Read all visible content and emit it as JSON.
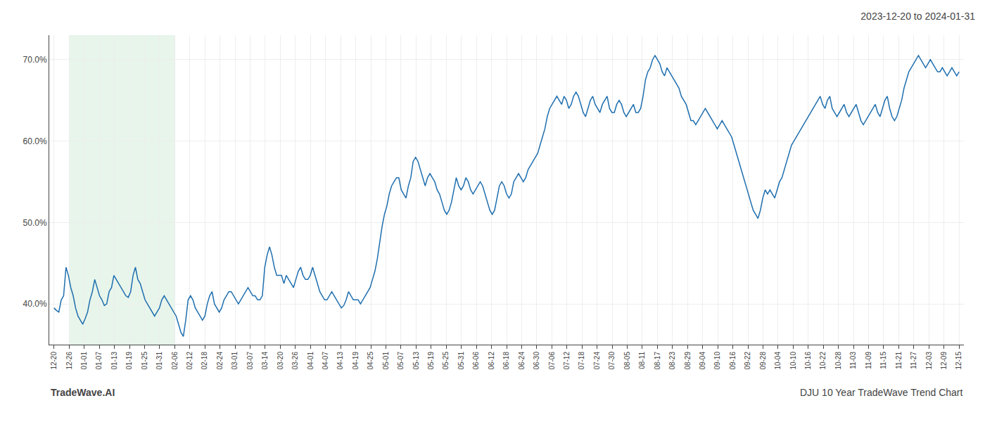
{
  "chart_data": {
    "type": "line",
    "title": "2023-12-20 to 2024-01-31",
    "annotations": [
      "TradeWave.AI",
      "DJU 10 Year TradeWave Trend Chart"
    ],
    "color": "#1f6faf",
    "grid": true,
    "span": {
      "x": [
        6.3,
        50.4
      ],
      "color": "#d4edda"
    },
    "xlim": [
      -2,
      380
    ],
    "xticks": [
      {
        "value": 0,
        "label": "12-20"
      },
      {
        "value": 6.3,
        "label": "12-26"
      },
      {
        "value": 12.6,
        "label": "01-01"
      },
      {
        "value": 18.9,
        "label": "01-07"
      },
      {
        "value": 25.2,
        "label": "01-13"
      },
      {
        "value": 31.5,
        "label": "01-19"
      },
      {
        "value": 37.8,
        "label": "01-25"
      },
      {
        "value": 44.1,
        "label": "01-31"
      },
      {
        "value": 50.4,
        "label": "02-06"
      },
      {
        "value": 56.7,
        "label": "02-12"
      },
      {
        "value": 63,
        "label": "02-18"
      },
      {
        "value": 69.3,
        "label": "02-24"
      },
      {
        "value": 75.6,
        "label": "03-01"
      },
      {
        "value": 81.9,
        "label": "03-07"
      },
      {
        "value": 88.2,
        "label": "03-14"
      },
      {
        "value": 94.5,
        "label": "03-20"
      },
      {
        "value": 100.8,
        "label": "03-26"
      },
      {
        "value": 107.1,
        "label": "04-01"
      },
      {
        "value": 113.4,
        "label": "04-07"
      },
      {
        "value": 119.7,
        "label": "04-13"
      },
      {
        "value": 126,
        "label": "04-19"
      },
      {
        "value": 132.3,
        "label": "04-25"
      },
      {
        "value": 138.6,
        "label": "05-01"
      },
      {
        "value": 144.9,
        "label": "05-07"
      },
      {
        "value": 151.2,
        "label": "05-13"
      },
      {
        "value": 157.5,
        "label": "05-19"
      },
      {
        "value": 163.8,
        "label": "05-25"
      },
      {
        "value": 170.1,
        "label": "05-31"
      },
      {
        "value": 176.4,
        "label": "06-06"
      },
      {
        "value": 182.7,
        "label": "06-12"
      },
      {
        "value": 189,
        "label": "06-18"
      },
      {
        "value": 195.3,
        "label": "06-24"
      },
      {
        "value": 201.6,
        "label": "06-30"
      },
      {
        "value": 207.9,
        "label": "07-06"
      },
      {
        "value": 214.2,
        "label": "07-12"
      },
      {
        "value": 220.5,
        "label": "07-18"
      },
      {
        "value": 226.8,
        "label": "07-24"
      },
      {
        "value": 233.1,
        "label": "07-30"
      },
      {
        "value": 239.4,
        "label": "08-05"
      },
      {
        "value": 245.7,
        "label": "08-11"
      },
      {
        "value": 252,
        "label": "08-17"
      },
      {
        "value": 258.3,
        "label": "08-23"
      },
      {
        "value": 264.6,
        "label": "08-29"
      },
      {
        "value": 270.9,
        "label": "09-04"
      },
      {
        "value": 277.2,
        "label": "09-10"
      },
      {
        "value": 283.5,
        "label": "09-16"
      },
      {
        "value": 289.8,
        "label": "09-22"
      },
      {
        "value": 296.1,
        "label": "09-28"
      },
      {
        "value": 302.4,
        "label": "10-04"
      },
      {
        "value": 308.7,
        "label": "10-10"
      },
      {
        "value": 315,
        "label": "10-16"
      },
      {
        "value": 321.3,
        "label": "10-22"
      },
      {
        "value": 327.6,
        "label": "10-28"
      },
      {
        "value": 333.9,
        "label": "11-03"
      },
      {
        "value": 340.2,
        "label": "11-09"
      },
      {
        "value": 346.5,
        "label": "11-15"
      },
      {
        "value": 352.8,
        "label": "11-21"
      },
      {
        "value": 359.1,
        "label": "11-27"
      },
      {
        "value": 365.4,
        "label": "12-03"
      },
      {
        "value": 371.7,
        "label": "12-09"
      },
      {
        "value": 378,
        "label": "12-15"
      }
    ],
    "ylim": [
      35,
      73
    ],
    "yticks": [
      {
        "value": 40,
        "label": "40.0%"
      },
      {
        "value": 50,
        "label": "50.0%"
      },
      {
        "value": 60,
        "label": "60.0%"
      },
      {
        "value": 70,
        "label": "70.0%"
      }
    ],
    "values": [
      39.5,
      39.2,
      39.0,
      40.5,
      41.0,
      44.5,
      43.5,
      42.0,
      41.0,
      39.5,
      38.5,
      38.0,
      37.5,
      38.2,
      39.0,
      40.5,
      41.5,
      43.0,
      42.0,
      41.0,
      40.5,
      39.8,
      40.0,
      41.5,
      42.0,
      43.5,
      43.0,
      42.5,
      42.0,
      41.5,
      41.0,
      40.8,
      41.5,
      43.5,
      44.5,
      43.0,
      42.5,
      41.5,
      40.5,
      40.0,
      39.5,
      39.0,
      38.5,
      39.0,
      39.5,
      40.5,
      41.0,
      40.5,
      40.0,
      39.5,
      39.0,
      38.5,
      37.5,
      36.5,
      36.0,
      38.0,
      40.5,
      41.0,
      40.5,
      39.5,
      39.0,
      38.5,
      38.0,
      38.5,
      40.0,
      41.0,
      41.5,
      40.0,
      39.5,
      39.0,
      39.5,
      40.5,
      41.0,
      41.5,
      41.5,
      41.0,
      40.5,
      40.0,
      40.5,
      41.0,
      41.5,
      42.0,
      41.5,
      41.0,
      41.0,
      40.5,
      40.5,
      41.0,
      44.5,
      46.0,
      47.0,
      46.0,
      44.5,
      43.5,
      43.5,
      43.5,
      42.5,
      43.5,
      43.0,
      42.5,
      42.0,
      43.0,
      44.0,
      44.5,
      43.5,
      43.0,
      43.0,
      43.5,
      44.5,
      43.5,
      42.5,
      41.5,
      41.0,
      40.5,
      40.5,
      41.0,
      41.5,
      41.0,
      40.5,
      40.0,
      39.5,
      39.8,
      40.5,
      41.5,
      41.0,
      40.5,
      40.5,
      40.5,
      40.0,
      40.5,
      41.0,
      41.5,
      42.0,
      43.0,
      44.0,
      45.5,
      47.5,
      49.5,
      51.0,
      52.0,
      53.5,
      54.5,
      55.0,
      55.5,
      55.5,
      54.0,
      53.5,
      53.0,
      54.5,
      55.5,
      57.5,
      58.0,
      57.5,
      56.5,
      55.5,
      54.5,
      55.5,
      56.0,
      55.5,
      55.0,
      54.0,
      53.5,
      52.5,
      51.5,
      51.0,
      51.5,
      52.5,
      54.0,
      55.5,
      54.5,
      54.0,
      54.5,
      55.5,
      55.0,
      54.0,
      53.5,
      54.0,
      54.5,
      55.0,
      54.5,
      53.5,
      52.5,
      51.5,
      51.0,
      51.5,
      53.0,
      54.5,
      55.0,
      54.5,
      53.5,
      53.0,
      53.5,
      55.0,
      55.5,
      56.0,
      55.5,
      55.0,
      55.5,
      56.5,
      57.0,
      57.5,
      58.0,
      58.5,
      59.5,
      60.5,
      61.5,
      63.0,
      64.0,
      64.5,
      65.0,
      65.5,
      65.0,
      64.5,
      65.5,
      65.0,
      64.0,
      64.5,
      65.5,
      66.0,
      65.5,
      64.5,
      63.5,
      63.0,
      64.0,
      65.0,
      65.5,
      64.5,
      64.0,
      63.5,
      64.5,
      65.0,
      65.5,
      64.0,
      63.5,
      63.5,
      64.5,
      65.0,
      64.5,
      63.5,
      63.0,
      63.5,
      64.0,
      64.5,
      63.5,
      63.5,
      64.0,
      65.5,
      67.5,
      68.5,
      69.0,
      70.0,
      70.5,
      70.0,
      69.5,
      68.5,
      68.0,
      69.0,
      68.5,
      68.0,
      67.5,
      67.0,
      66.5,
      65.5,
      65.0,
      64.5,
      63.5,
      62.5,
      62.5,
      62.0,
      62.5,
      63.0,
      63.5,
      64.0,
      63.5,
      63.0,
      62.5,
      62.0,
      61.5,
      62.0,
      62.5,
      62.0,
      61.5,
      61.0,
      60.5,
      59.5,
      58.5,
      57.5,
      56.5,
      55.5,
      54.5,
      53.5,
      52.5,
      51.5,
      51.0,
      50.5,
      51.5,
      53.0,
      54.0,
      53.5,
      54.0,
      53.5,
      53.0,
      54.0,
      55.0,
      55.5,
      56.5,
      57.5,
      58.5,
      59.5,
      60.0,
      60.5,
      61.0,
      61.5,
      62.0,
      62.5,
      63.0,
      63.5,
      64.0,
      64.5,
      65.0,
      65.5,
      64.5,
      64.0,
      65.0,
      65.5,
      64.0,
      63.5,
      63.0,
      63.5,
      64.0,
      64.5,
      63.5,
      63.0,
      63.5,
      64.0,
      64.5,
      63.5,
      62.5,
      62.0,
      62.5,
      63.0,
      63.5,
      64.0,
      64.5,
      63.5,
      63.0,
      64.0,
      65.0,
      65.5,
      64.0,
      63.0,
      62.5,
      63.0,
      64.0,
      65.0,
      66.5,
      67.5,
      68.5,
      69.0,
      69.5,
      70.0,
      70.5,
      70.0,
      69.5,
      69.0,
      69.5,
      70.0,
      69.5,
      69.0,
      68.5,
      68.5,
      69.0,
      68.5,
      68.0,
      68.5,
      69.0,
      68.5,
      68.0,
      68.5
    ]
  }
}
